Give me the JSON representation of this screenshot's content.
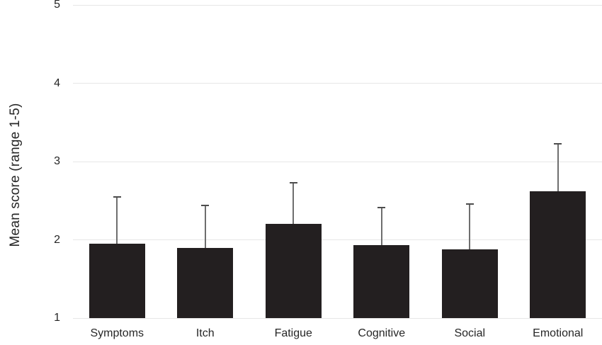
{
  "figure": {
    "background": "#ffffff"
  },
  "chart_data": {
    "type": "bar",
    "title": "",
    "categories": [
      "Symptoms",
      "Itch",
      "Fatigue",
      "Cognitive",
      "Social",
      "Emotional"
    ],
    "values": [
      1.95,
      1.9,
      2.2,
      1.93,
      1.88,
      2.62
    ],
    "error_upper": [
      0.6,
      0.54,
      0.53,
      0.48,
      0.58,
      0.61
    ],
    "xlabel": "",
    "ylabel": "Mean score (range 1-5)",
    "ylim": [
      1,
      5
    ],
    "yticks": [
      1,
      2,
      3,
      4,
      5
    ],
    "grid": "horizontal",
    "legend": "none",
    "bar_color": "#231f20",
    "gridline_color": "#e7e7e7",
    "error_color": "#6e6e6e",
    "text_color": "#262626"
  }
}
